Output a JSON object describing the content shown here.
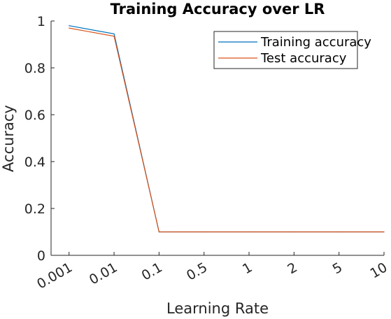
{
  "chart_data": {
    "type": "line",
    "title": "Training Accuracy over LR",
    "xlabel": "Learning Rate",
    "ylabel": "Accuracy",
    "categories": [
      "0.001",
      "0.01",
      "0.1",
      "0.5",
      "1",
      "2",
      "5",
      "10"
    ],
    "yticks": [
      "0",
      "0.2",
      "0.4",
      "0.6",
      "0.8",
      "1"
    ],
    "ylim": [
      0,
      1
    ],
    "legend_position": "top-right",
    "grid": false,
    "series": [
      {
        "name": "Training accuracy",
        "color": "#0072BD",
        "values": [
          0.98,
          0.945,
          0.1,
          0.1,
          0.1,
          0.1,
          0.1,
          0.1
        ]
      },
      {
        "name": "Test accuracy",
        "color": "#D95319",
        "values": [
          0.97,
          0.935,
          0.1,
          0.1,
          0.1,
          0.1,
          0.1,
          0.1
        ]
      }
    ]
  }
}
